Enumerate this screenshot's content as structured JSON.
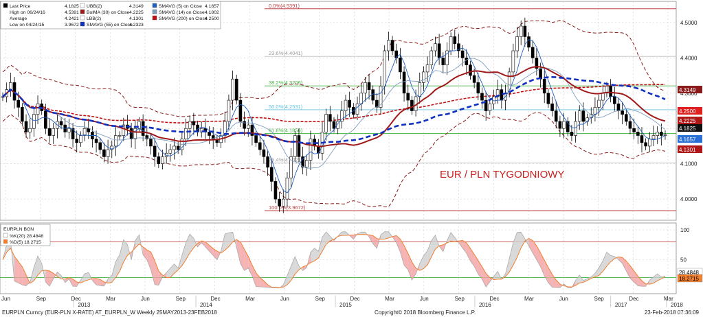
{
  "chart_data": {
    "type": "line",
    "title": "EUR / PLN TYGODNIOWY",
    "colors": {
      "price": "#000000",
      "bollinger_band": "#8b1a1a",
      "bollinger_ma": "#a01a1a",
      "smavg5": "#1f5fbf",
      "smavg14": "#7f9fbf",
      "smavg55": "#1030c0",
      "smavg200": "#c01010",
      "fib_red": "#c04040",
      "fib_green": "#40b040",
      "fib_cyan": "#60c0e0",
      "fib_darkred": "#a03030",
      "stoch_k": "#aaaaaa",
      "stoch_d": "#f08030",
      "stoch_up": "#d0d0d0",
      "stoch_down": "#f4a0a0"
    },
    "legend": {
      "col1": [
        {
          "label": "Last Price",
          "value": "4.1825"
        },
        {
          "label": "High on 06/24/16",
          "value": "4.5391"
        },
        {
          "label": "Average",
          "value": "4.2421"
        },
        {
          "label": "Low on 04/24/15",
          "value": "3.9672"
        }
      ],
      "col2": [
        {
          "label": "UBB(2)",
          "value": "4.3149"
        },
        {
          "label": "BolMA (30) on Close",
          "value": "4.2225"
        },
        {
          "label": "LBB(2)",
          "value": "4.1301"
        },
        {
          "label": "SMAVG (55) on Close",
          "value": "4.2323"
        }
      ],
      "col3": [
        {
          "label": "SMAVG (5) on Close",
          "value": "4.1657"
        },
        {
          "label": "SMAVG (14) on Close",
          "value": "4.1802"
        },
        {
          "label": "SMAVG (200) on Close",
          "value": "4.2500"
        }
      ]
    },
    "y_axis": {
      "ylim": [
        3.94,
        4.56
      ],
      "ticks": [
        "4.5000",
        "4.4000",
        "4.3000",
        "4.2000",
        "4.1000",
        "4.0000"
      ],
      "tick_values": [
        4.5,
        4.4,
        4.3,
        4.2,
        4.1,
        4.0
      ]
    },
    "fib_levels": [
      {
        "label": "0.0%(4.5391)",
        "value": 4.5391,
        "color": "#c04040"
      },
      {
        "label": "23.6%(4.4041)",
        "value": 4.4041,
        "color": "#c0c0c0"
      },
      {
        "label": "38.2%(4.3206)",
        "value": 4.3206,
        "color": "#40b040"
      },
      {
        "label": "50.0%(4.2531)",
        "value": 4.2531,
        "color": "#60c0e0"
      },
      {
        "label": "61.8%(4.1856)",
        "value": 4.1856,
        "color": "#40b040"
      },
      {
        "label": "76.4%(4.1021)",
        "value": 4.1021,
        "color": "#c0c0c0"
      },
      {
        "label": "100.0%(3.9672)",
        "value": 3.9672,
        "color": "#c04040"
      }
    ],
    "right_tags": [
      {
        "value": "4.3149",
        "color": "#8b1a1a",
        "text_color": "#ffffff"
      },
      {
        "value": "4.2500",
        "color": "#e02020",
        "text_color": "#ffffff"
      },
      {
        "value": "4.2225",
        "color": "#b01818",
        "text_color": "#ffffff"
      },
      {
        "value": "4.1825",
        "color": "#111111",
        "text_color": "#ffffff"
      },
      {
        "value": "4.1657",
        "color": "#2a6fd6",
        "text_color": "#ffffff"
      },
      {
        "value": "4.1301",
        "color": "#b01818",
        "text_color": "#ffffff"
      }
    ],
    "x_months": [
      "Jun",
      "Sep",
      "Dec",
      "Mar",
      "Jun",
      "Sep",
      "Dec",
      "Mar",
      "Jun",
      "Sep",
      "Dec",
      "Mar",
      "Jun",
      "Sep",
      "Dec",
      "Mar",
      "Jun",
      "Sep",
      "Dec",
      "Mar"
    ],
    "x_years": [
      "2013",
      "2014",
      "2015",
      "2016",
      "2017",
      "2018"
    ],
    "price_close": [
      4.29,
      4.31,
      4.33,
      4.28,
      4.26,
      4.22,
      4.19,
      4.2,
      4.24,
      4.27,
      4.25,
      4.2,
      4.18,
      4.2,
      4.22,
      4.21,
      4.19,
      4.2,
      4.17,
      4.16,
      4.18,
      4.2,
      4.19,
      4.17,
      4.16,
      4.14,
      4.12,
      4.14,
      4.15,
      4.18,
      4.18,
      4.21,
      4.2,
      4.17,
      4.2,
      4.22,
      4.18,
      4.17,
      4.15,
      4.12,
      4.1,
      4.12,
      4.13,
      4.14,
      4.15,
      4.14,
      4.17,
      4.2,
      4.22,
      4.21,
      4.19,
      4.2,
      4.19,
      4.18,
      4.17,
      4.16,
      4.18,
      4.22,
      4.28,
      4.34,
      4.28,
      4.22,
      4.2,
      4.21,
      4.18,
      4.16,
      4.14,
      4.12,
      4.09,
      4.05,
      4.0,
      3.98,
      4.0,
      4.06,
      4.12,
      4.18,
      4.12,
      4.09,
      4.11,
      4.17,
      4.15,
      4.13,
      4.19,
      4.24,
      4.22,
      4.2,
      4.22,
      4.25,
      4.28,
      4.26,
      4.24,
      4.27,
      4.3,
      4.33,
      4.31,
      4.28,
      4.26,
      4.32,
      4.42,
      4.45,
      4.42,
      4.4,
      4.36,
      4.3,
      4.28,
      4.25,
      4.29,
      4.33,
      4.36,
      4.38,
      4.42,
      4.44,
      4.4,
      4.38,
      4.42,
      4.46,
      4.44,
      4.42,
      4.4,
      4.38,
      4.35,
      4.33,
      4.3,
      4.28,
      4.25,
      4.27,
      4.29,
      4.31,
      4.28,
      4.3,
      4.36,
      4.42,
      4.46,
      4.49,
      4.46,
      4.43,
      4.4,
      4.37,
      4.34,
      4.3,
      4.27,
      4.25,
      4.22,
      4.2,
      4.22,
      4.19,
      4.18,
      4.22,
      4.25,
      4.22,
      4.23,
      4.24,
      4.26,
      4.28,
      4.3,
      4.32,
      4.29,
      4.27,
      4.25,
      4.24,
      4.22,
      4.2,
      4.19,
      4.18,
      4.16,
      4.15,
      4.17,
      4.18,
      4.19,
      4.18,
      4.1825
    ],
    "stochastic": {
      "labels": {
        "title": "EURPLN BGN",
        "k": "%K(20) 28.4848",
        "d": "%D(5) 18.2715"
      },
      "ylim": [
        0,
        100
      ],
      "ticks": [
        "100",
        "50"
      ],
      "tick_values": [
        100,
        50
      ],
      "levels": [
        80,
        20
      ],
      "right_tags": [
        {
          "value": "28.4848",
          "color": "#ffffff",
          "text_color": "#000000"
        },
        {
          "value": "18.2715",
          "color": "#f08030",
          "text_color": "#000000"
        }
      ]
    }
  },
  "footer": {
    "left": "EURPLN Curncy (EUR-PLN X-RATE) AT_EURPLN_W  Weekly 25MAY2013-23FEB2018",
    "center": "Copyright© 2018 Bloomberg Finance L.P.",
    "right": "23-Feb-2018 07:36:09"
  }
}
